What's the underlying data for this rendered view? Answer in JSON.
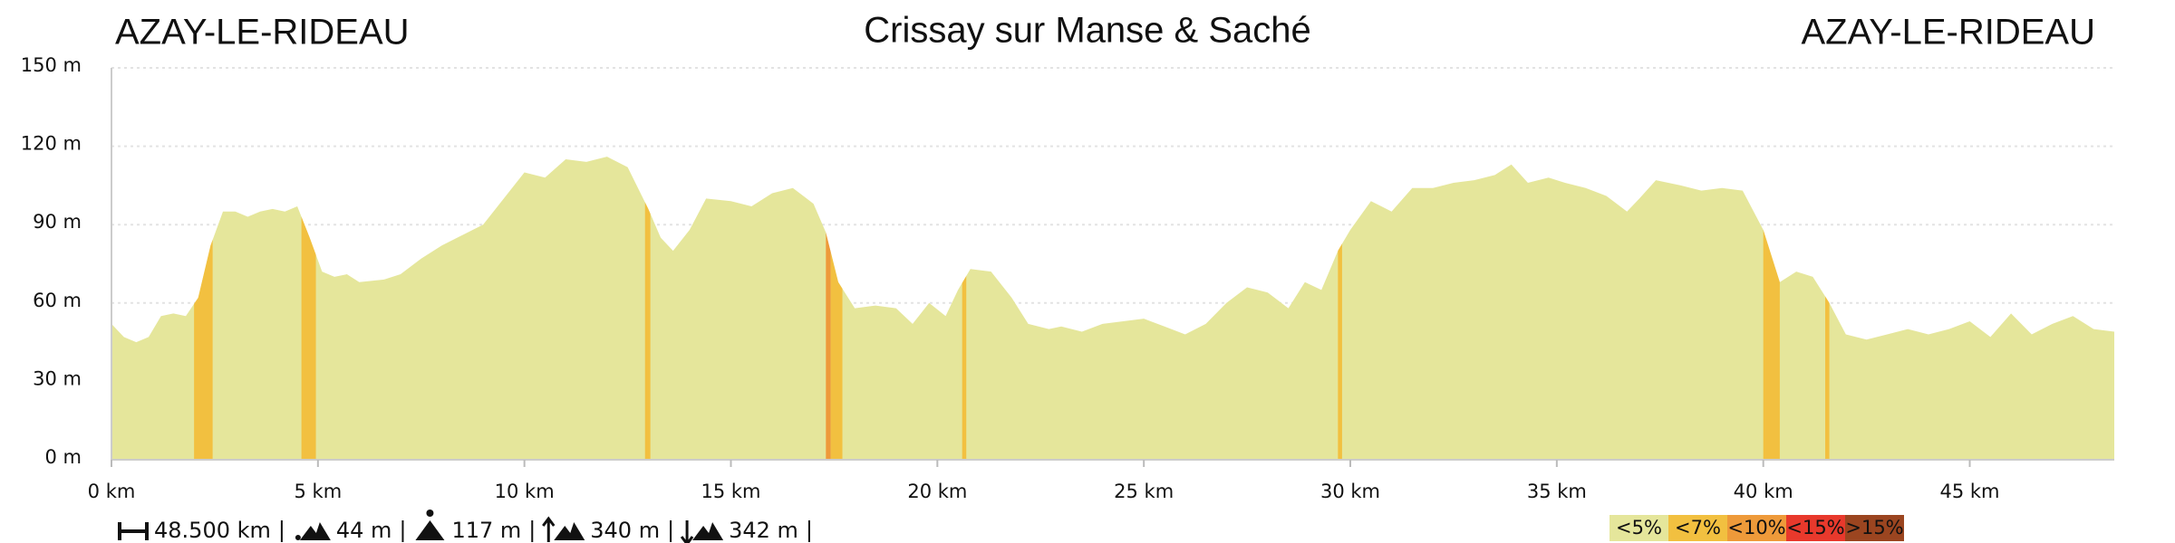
{
  "chart_data": {
    "type": "area",
    "title": "Crissay sur Manse & Saché",
    "start_label": "AZAY-LE-RIDEAU",
    "end_label": "AZAY-LE-RIDEAU",
    "color": "#e5e69b",
    "x": [
      0,
      0.3,
      0.6,
      0.9,
      1.2,
      1.5,
      1.8,
      2.1,
      2.4,
      2.7,
      3.0,
      3.3,
      3.6,
      3.9,
      4.2,
      4.5,
      4.8,
      5.1,
      5.4,
      5.7,
      6.0,
      6.6,
      7.0,
      7.5,
      8.0,
      8.5,
      9.0,
      9.5,
      10.0,
      10.5,
      11.0,
      11.5,
      12.0,
      12.5,
      13.0,
      13.3,
      13.6,
      14.0,
      14.4,
      15.0,
      15.5,
      16.0,
      16.5,
      17.0,
      17.3,
      17.6,
      18.0,
      18.5,
      19.0,
      19.4,
      19.8,
      20.2,
      20.5,
      20.8,
      21.3,
      21.8,
      22.2,
      22.7,
      23.0,
      23.5,
      24.0,
      24.5,
      25.0,
      25.5,
      26.0,
      26.5,
      27.0,
      27.5,
      28.0,
      28.5,
      28.9,
      29.3,
      29.7,
      30.0,
      30.5,
      31.0,
      31.5,
      32.0,
      32.5,
      33.0,
      33.5,
      33.9,
      34.3,
      34.8,
      35.2,
      35.7,
      36.2,
      36.7,
      37.0,
      37.4,
      38.0,
      38.5,
      39.0,
      39.5,
      40.0,
      40.4,
      40.8,
      41.2,
      41.6,
      42.0,
      42.5,
      43.0,
      43.5,
      44.0,
      44.5,
      45.0,
      45.5,
      46.0,
      46.5,
      47.0,
      47.5,
      48.0,
      48.5
    ],
    "values": [
      52,
      47,
      45,
      47,
      55,
      56,
      55,
      62,
      82,
      95,
      95,
      93,
      95,
      96,
      95,
      97,
      85,
      72,
      70,
      71,
      68,
      69,
      71,
      77,
      82,
      86,
      90,
      100,
      110,
      108,
      115,
      114,
      116,
      112,
      96,
      85,
      80,
      88,
      100,
      99,
      97,
      102,
      104,
      98,
      87,
      68,
      58,
      59,
      58,
      52,
      60,
      55,
      65,
      73,
      72,
      62,
      52,
      50,
      51,
      49,
      52,
      53,
      54,
      51,
      48,
      52,
      60,
      66,
      64,
      58,
      68,
      65,
      80,
      88,
      99,
      95,
      104,
      104,
      106,
      107,
      109,
      113,
      106,
      108,
      106,
      104,
      101,
      95,
      100,
      107,
      105,
      103,
      104,
      103,
      88,
      68,
      72,
      70,
      60,
      48,
      46,
      48,
      50,
      48,
      50,
      53,
      47,
      56,
      48,
      52,
      55,
      50,
      49
    ],
    "steep_segments": [
      {
        "from": 2.0,
        "to": 2.45,
        "color": "#f2c040"
      },
      {
        "from": 4.6,
        "to": 4.95,
        "color": "#f2c040"
      },
      {
        "from": 12.92,
        "to": 13.05,
        "color": "#f2c040"
      },
      {
        "from": 17.3,
        "to": 17.42,
        "color": "#ee9a3a"
      },
      {
        "from": 17.42,
        "to": 17.7,
        "color": "#f2c040"
      },
      {
        "from": 20.6,
        "to": 20.7,
        "color": "#f2c040"
      },
      {
        "from": 29.7,
        "to": 29.8,
        "color": "#f2c040"
      },
      {
        "from": 40.0,
        "to": 40.4,
        "color": "#f2c040"
      },
      {
        "from": 41.5,
        "to": 41.6,
        "color": "#f2c040"
      }
    ],
    "xlim": [
      0,
      48.5
    ],
    "ylim": [
      0,
      150
    ],
    "xticks": [
      {
        "value": 0,
        "label": "0 km"
      },
      {
        "value": 5,
        "label": "5 km"
      },
      {
        "value": 10,
        "label": "10 km"
      },
      {
        "value": 15,
        "label": "15 km"
      },
      {
        "value": 20,
        "label": "20 km"
      },
      {
        "value": 25,
        "label": "25 km"
      },
      {
        "value": 30,
        "label": "30 km"
      },
      {
        "value": 35,
        "label": "35 km"
      },
      {
        "value": 40,
        "label": "40 km"
      },
      {
        "value": 45,
        "label": "45 km"
      }
    ],
    "yticks": [
      {
        "value": 0,
        "label": "0 m"
      },
      {
        "value": 30,
        "label": "30 m"
      },
      {
        "value": 60,
        "label": "60 m"
      },
      {
        "value": 90,
        "label": "90 m"
      },
      {
        "value": 120,
        "label": "120 m"
      },
      {
        "value": 150,
        "label": "150 m"
      }
    ],
    "grid": true,
    "stats": [
      "48.500 km",
      "44 m",
      "117 m",
      "340 m",
      "342 m"
    ],
    "gradient_legend": [
      {
        "label": "<5%",
        "color": "#e5e69b"
      },
      {
        "label": "<7%",
        "color": "#f2c040"
      },
      {
        "label": "<10%",
        "color": "#ee9a3a"
      },
      {
        "label": "<15%",
        "color": "#e8392c"
      },
      {
        "label": ">15%",
        "color": "#9b4520"
      }
    ]
  }
}
